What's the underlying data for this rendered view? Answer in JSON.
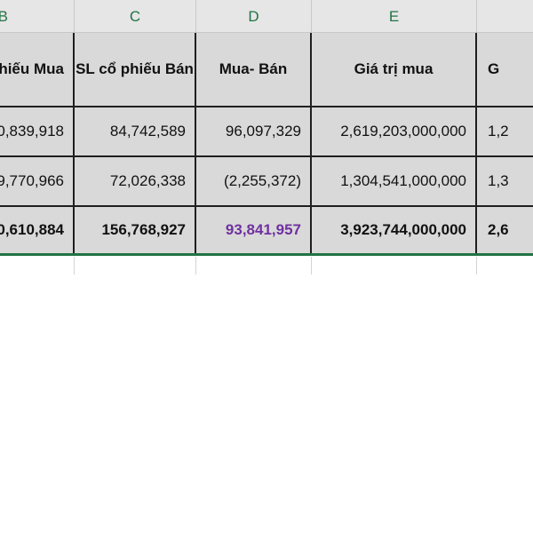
{
  "columns": {
    "b": "B",
    "c": "C",
    "d": "D",
    "e": "E",
    "f": ""
  },
  "header": {
    "b": "phiếu Mua",
    "c": "SL cổ phiếu Bán",
    "d": "Mua- Bán",
    "e": "Giá trị mua",
    "f": "G"
  },
  "rows": [
    {
      "b": "0,839,918",
      "c": "84,742,589",
      "d": "96,097,329",
      "e": "2,619,203,000,000",
      "f": "1,2"
    },
    {
      "b": "9,770,966",
      "c": "72,026,338",
      "d": "(2,255,372)",
      "e": "1,304,541,000,000",
      "f": "1,3"
    }
  ],
  "total": {
    "b": "0,610,884",
    "c": "156,768,927",
    "d": "93,841,957",
    "e": "3,923,744,000,000",
    "f": "2,6"
  },
  "colors": {
    "column_header_text": "#217346",
    "highlight_value": "#7030a0",
    "table_fill": "#d9d9d9"
  }
}
